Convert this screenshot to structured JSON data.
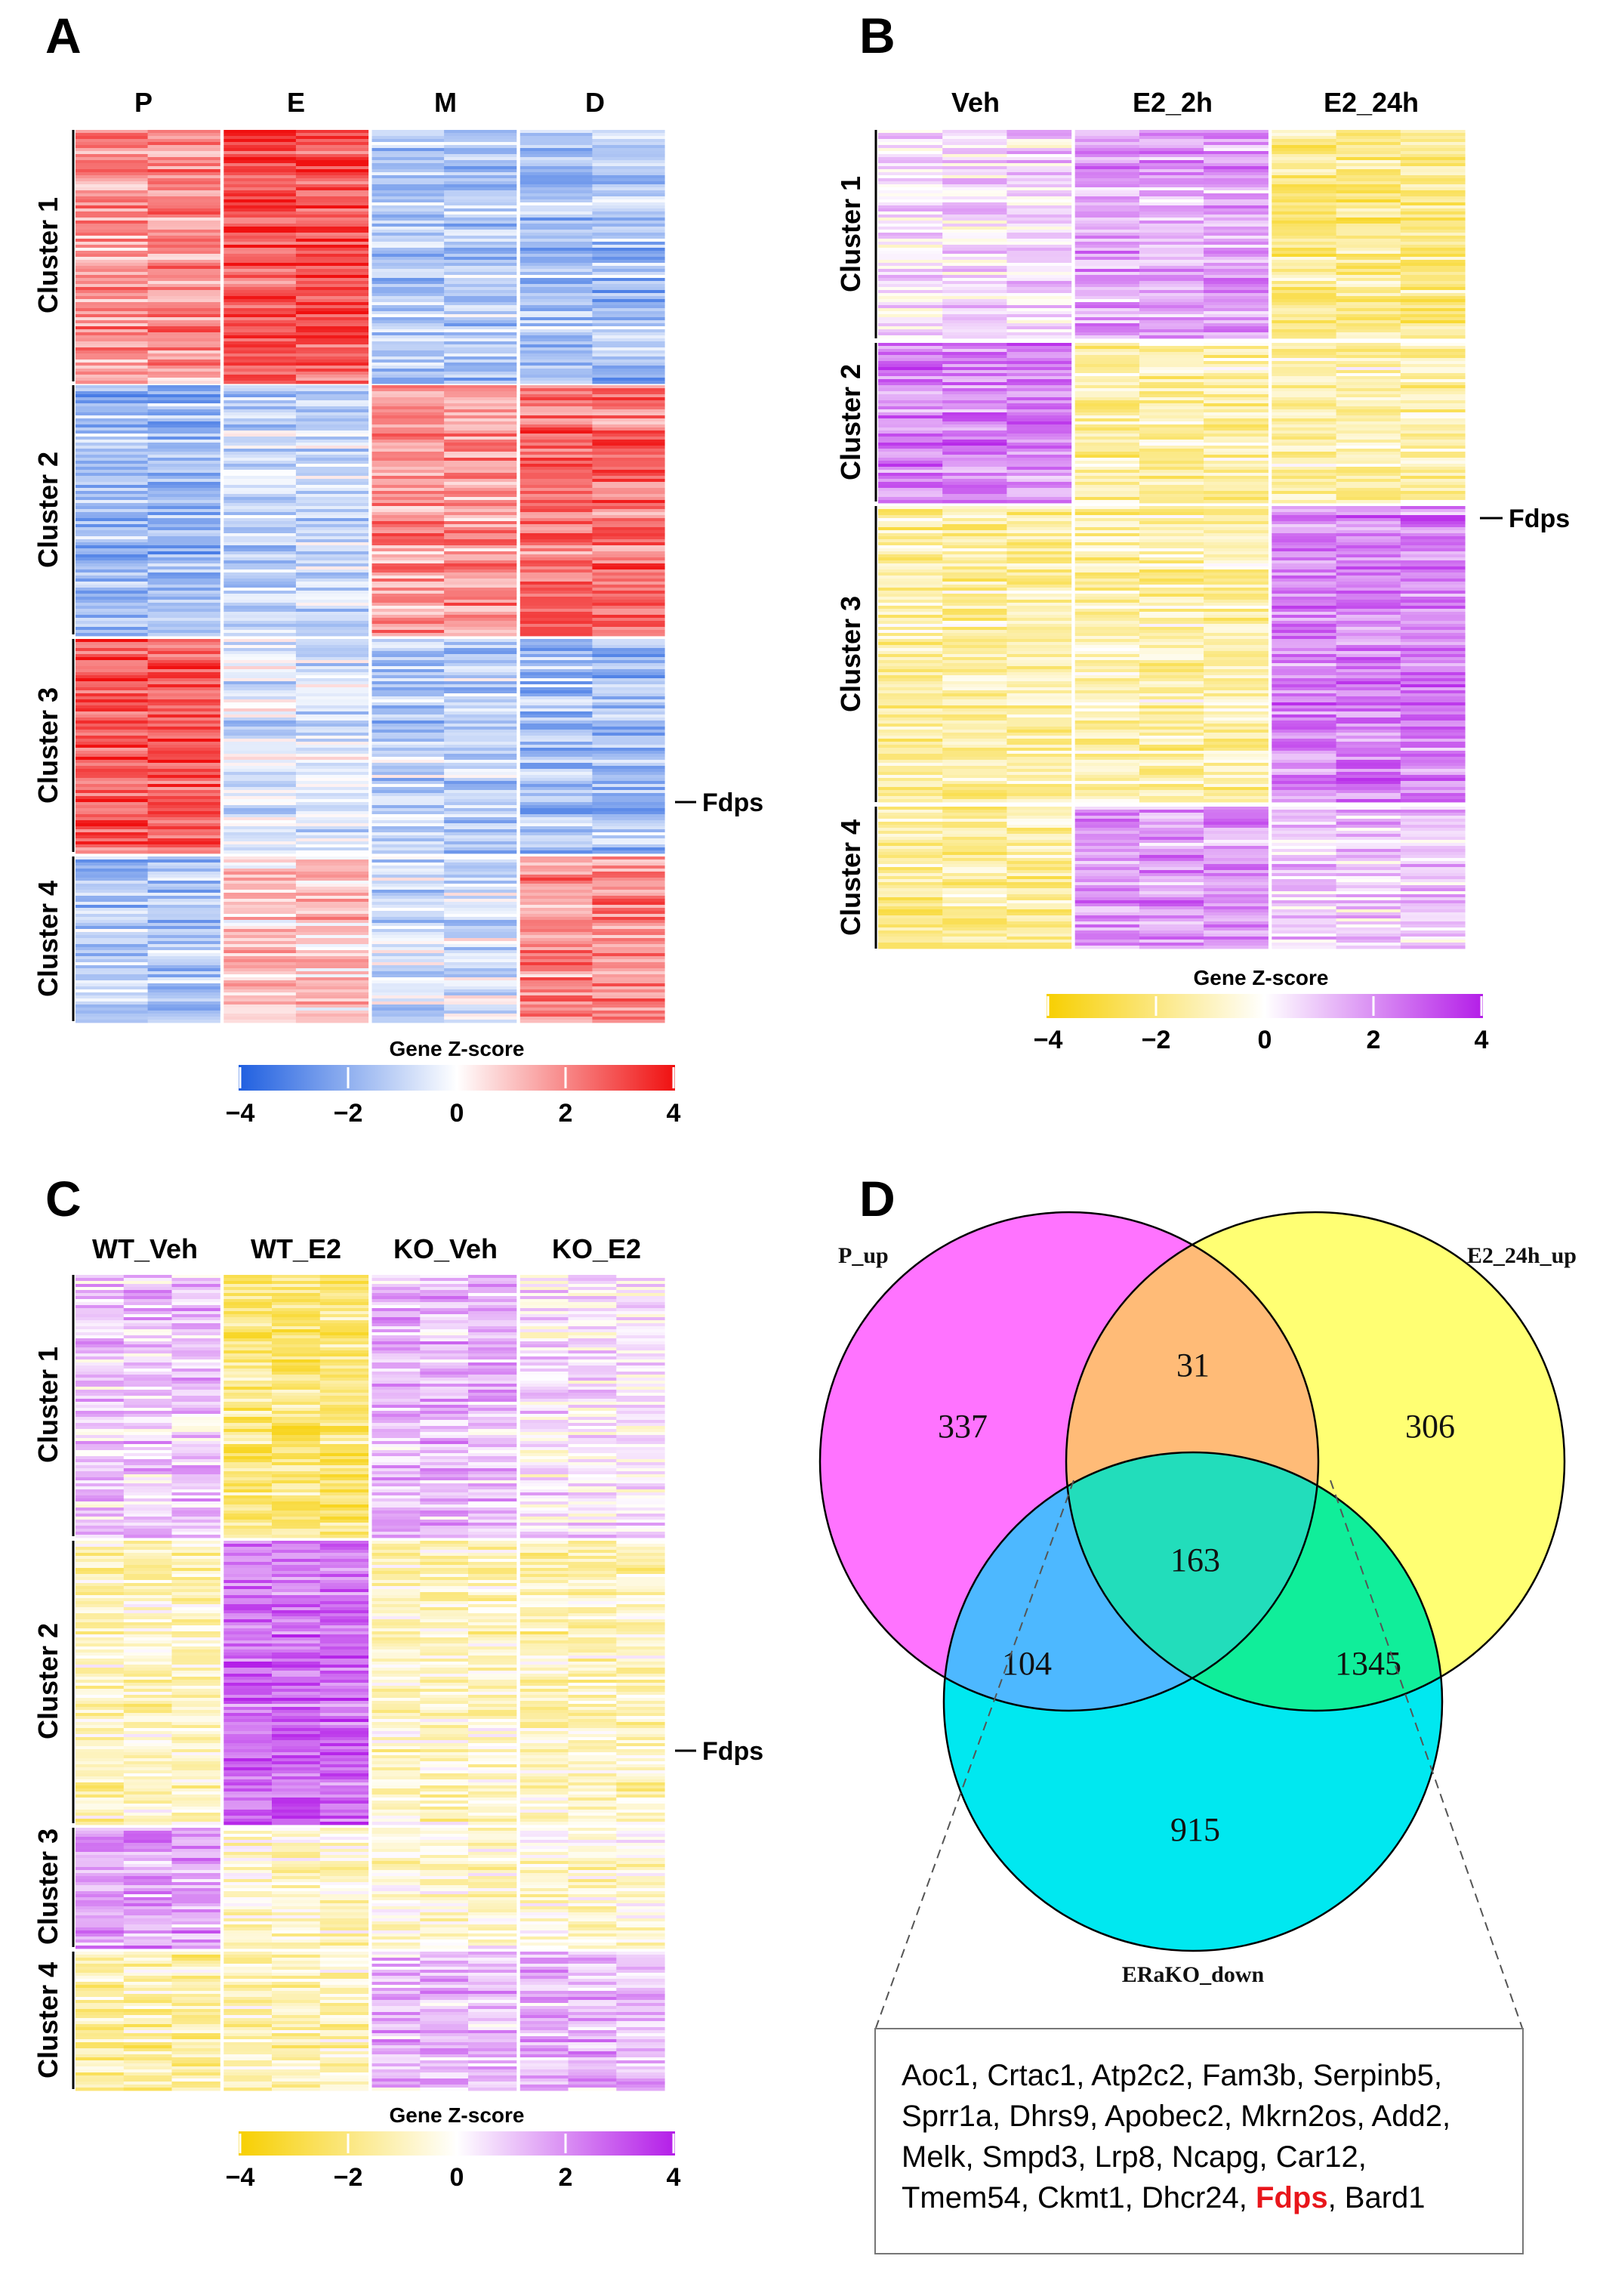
{
  "panels": {
    "A": {
      "letter": "A",
      "columns": [
        "P",
        "E",
        "M",
        "D"
      ],
      "clusters": [
        "Cluster 1",
        "Cluster 2",
        "Cluster 3",
        "Cluster 4"
      ],
      "marked_gene": "Fdps",
      "scale_title": "Gene Z-score",
      "scale_ticks": [
        "−4",
        "−2",
        "0",
        "2",
        "4"
      ],
      "palette": {
        "low": "#1f5fe0",
        "mid": "#ffffff",
        "high": "#f01010"
      }
    },
    "B": {
      "letter": "B",
      "columns": [
        "Veh",
        "E2_2h",
        "E2_24h"
      ],
      "clusters": [
        "Cluster 1",
        "Cluster 2",
        "Cluster 3",
        "Cluster 4"
      ],
      "marked_gene": "Fdps",
      "scale_title": "Gene Z-score",
      "scale_ticks": [
        "−4",
        "−2",
        "0",
        "2",
        "4"
      ],
      "palette": {
        "low": "#f7cf00",
        "mid": "#ffffff",
        "high": "#b41ee8"
      }
    },
    "C": {
      "letter": "C",
      "columns": [
        "WT_Veh",
        "WT_E2",
        "KO_Veh",
        "KO_E2"
      ],
      "clusters": [
        "Cluster 1",
        "Cluster 2",
        "Cluster 3",
        "Cluster 4"
      ],
      "marked_gene": "Fdps",
      "scale_title": "Gene Z-score",
      "scale_ticks": [
        "−4",
        "−2",
        "0",
        "2",
        "4"
      ],
      "palette": {
        "low": "#f7cf00",
        "mid": "#ffffff",
        "high": "#b41ee8"
      }
    },
    "D": {
      "letter": "D",
      "sets": [
        "P_up",
        "E2_24h_up",
        "ERaKO_down"
      ],
      "regions": {
        "p_only": "337",
        "p_e2": "31",
        "e2_only": "306",
        "all_three": "163",
        "p_ko": "104",
        "e2_ko": "1345",
        "ko_only": "915"
      },
      "set_colors": {
        "p_up": "#ff73ff",
        "e2_up": "#ffff73",
        "ko_down": "#00e8f0"
      },
      "genes_before": "Aoc1, Crtac1, Atp2c2, Fam3b, Serpinb5, Sprr1a, Dhrs9, Apobec2, Mkrn2os, Add2, Melk, Smpd3, Lrp8, Ncapg, Car12, Tmem54, Ckmt1, Dhcr24, ",
      "highlight_gene": "Fdps",
      "genes_after": ", Bard1"
    }
  }
}
